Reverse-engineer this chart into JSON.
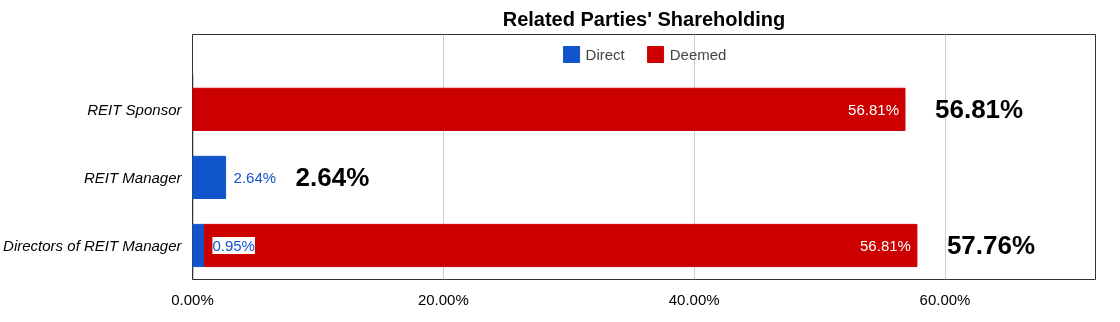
{
  "chart_data": {
    "type": "bar",
    "orientation": "horizontal",
    "stacked": true,
    "title": "Related Parties' Shareholding",
    "categories": [
      "REIT Sponsor",
      "REIT Manager",
      "Directors of REIT Manager"
    ],
    "series": [
      {
        "name": "Direct",
        "color": "#1155cc",
        "values": [
          null,
          2.64,
          0.95
        ],
        "value_labels": [
          null,
          "2.64%",
          "0.95%"
        ]
      },
      {
        "name": "Deemed",
        "color": "#cc0000",
        "values": [
          56.81,
          null,
          56.81
        ],
        "value_labels": [
          "56.81%",
          null,
          "56.81%"
        ]
      }
    ],
    "totals": [
      "56.81%",
      "2.64%",
      "57.76%"
    ],
    "xlim": [
      0,
      72
    ],
    "xticks": [
      {
        "value": 0,
        "label": "0.00%"
      },
      {
        "value": 20,
        "label": "20.00%"
      },
      {
        "value": 40,
        "label": "40.00%"
      },
      {
        "value": 60,
        "label": "60.00%"
      }
    ],
    "grid": "x",
    "legend": "top"
  }
}
